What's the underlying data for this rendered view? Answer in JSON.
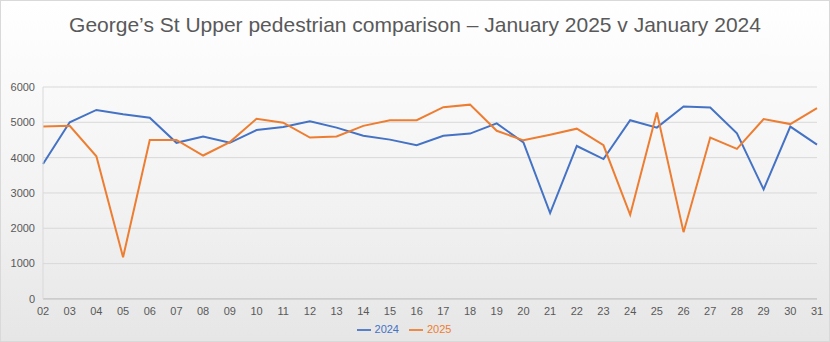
{
  "chart_data": {
    "type": "line",
    "title": "George’s St Upper pedestrian comparison – January 2025 v January 2024",
    "categories": [
      "02",
      "03",
      "04",
      "05",
      "06",
      "07",
      "08",
      "09",
      "10",
      "11",
      "12",
      "13",
      "14",
      "15",
      "16",
      "17",
      "18",
      "19",
      "20",
      "21",
      "22",
      "23",
      "24",
      "25",
      "26",
      "27",
      "28",
      "29",
      "30",
      "31"
    ],
    "series": [
      {
        "name": "2024",
        "color": "#4472c4",
        "values": [
          3820,
          5000,
          5350,
          5230,
          5130,
          4420,
          4600,
          4420,
          4780,
          4870,
          5030,
          4850,
          4620,
          4510,
          4350,
          4620,
          4680,
          4970,
          4430,
          2430,
          4330,
          3960,
          5060,
          4850,
          5450,
          5420,
          4690,
          3100,
          4880,
          4370
        ]
      },
      {
        "name": "2025",
        "color": "#ed7d31",
        "values": [
          4880,
          4900,
          4040,
          1180,
          4500,
          4500,
          4060,
          4440,
          5100,
          4990,
          4570,
          4600,
          4900,
          5060,
          5060,
          5430,
          5500,
          4760,
          4490,
          4650,
          4820,
          4350,
          2380,
          5280,
          1890,
          4570,
          4250,
          5090,
          4950,
          5400
        ]
      }
    ],
    "ylim": [
      0,
      6000
    ],
    "yticks": [
      0,
      1000,
      2000,
      3000,
      4000,
      5000,
      6000
    ],
    "grid": true,
    "legend": "bottom"
  }
}
